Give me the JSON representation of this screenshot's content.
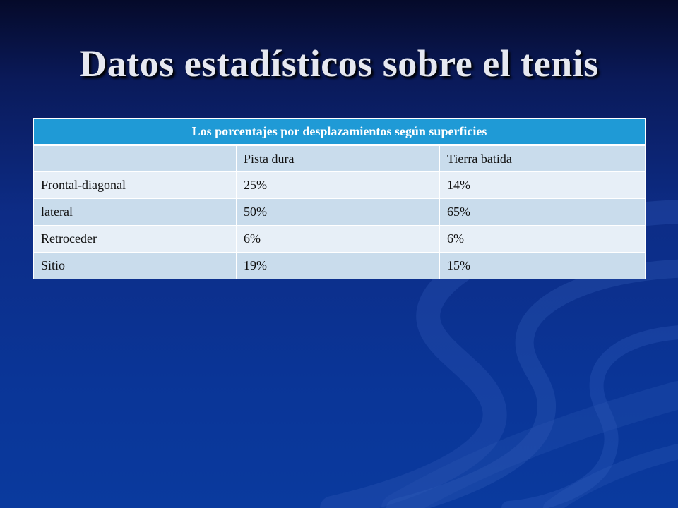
{
  "slide": {
    "title": "Datos estadísticos sobre el tenis"
  },
  "table": {
    "caption": "Los porcentajes por desplazamientos según superficies",
    "columns": [
      "",
      "Pista dura",
      "Tierra batida"
    ],
    "rows": [
      {
        "label": "Frontal-diagonal",
        "pista_dura": "25%",
        "tierra_batida": "14%"
      },
      {
        "label": "lateral",
        "pista_dura": "50%",
        "tierra_batida": "65%"
      },
      {
        "label": "Retroceder",
        "pista_dura": "6%",
        "tierra_batida": "6%"
      },
      {
        "label": "Sitio",
        "pista_dura": "19%",
        "tierra_batida": "15%"
      }
    ]
  },
  "colors": {
    "header": "#1f9ad6",
    "row_dark": "#c9dcec",
    "row_light": "#e7eff7",
    "background": "#0a3597"
  }
}
